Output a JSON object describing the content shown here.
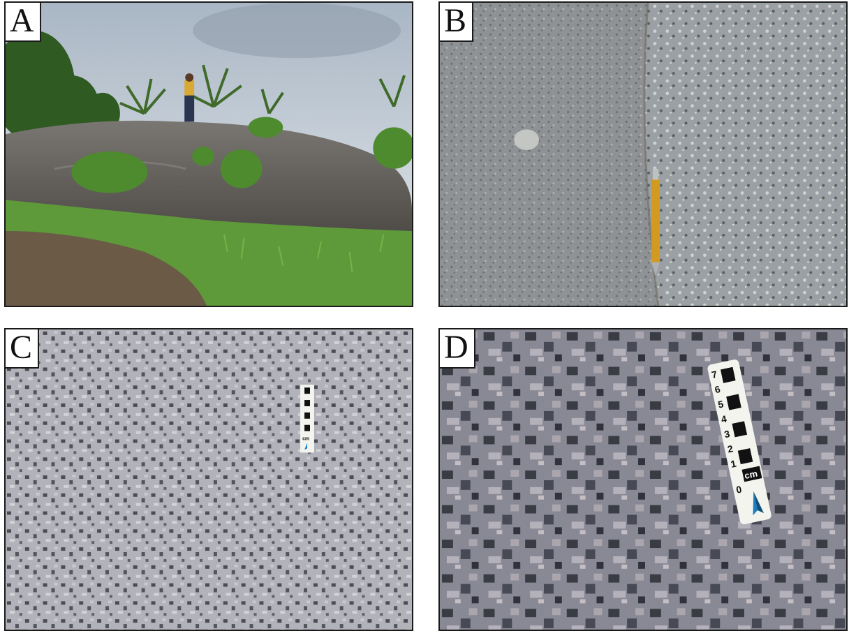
{
  "panels": [
    {
      "letter": "A",
      "subject": "rock outcrop with vegetation and person on top"
    },
    {
      "letter": "B",
      "subject": "fine-grained rock contact with pencil for scale"
    },
    {
      "letter": "C",
      "subject": "coarse-grained rock texture with small scale bar"
    },
    {
      "letter": "D",
      "subject": "coarse-grained rock texture close-up with scale bar"
    }
  ],
  "scale_bars": {
    "C": {
      "unit": "cm"
    },
    "D": {
      "unit": "cm",
      "ticks": [
        "7",
        "6",
        "5",
        "4",
        "3",
        "2",
        "1",
        "0"
      ]
    }
  },
  "colors": {
    "sky": "#cfd8e2",
    "outcrop": "#5e5a55",
    "grass": "#5f9a3a",
    "soil": "#6a5a46",
    "rock_gray": "#8e9294",
    "pencil": "#d39a21",
    "granite_light": "#c9c8cd",
    "granite_dark": "#2a2c33",
    "label_bg": "#ffffff"
  }
}
